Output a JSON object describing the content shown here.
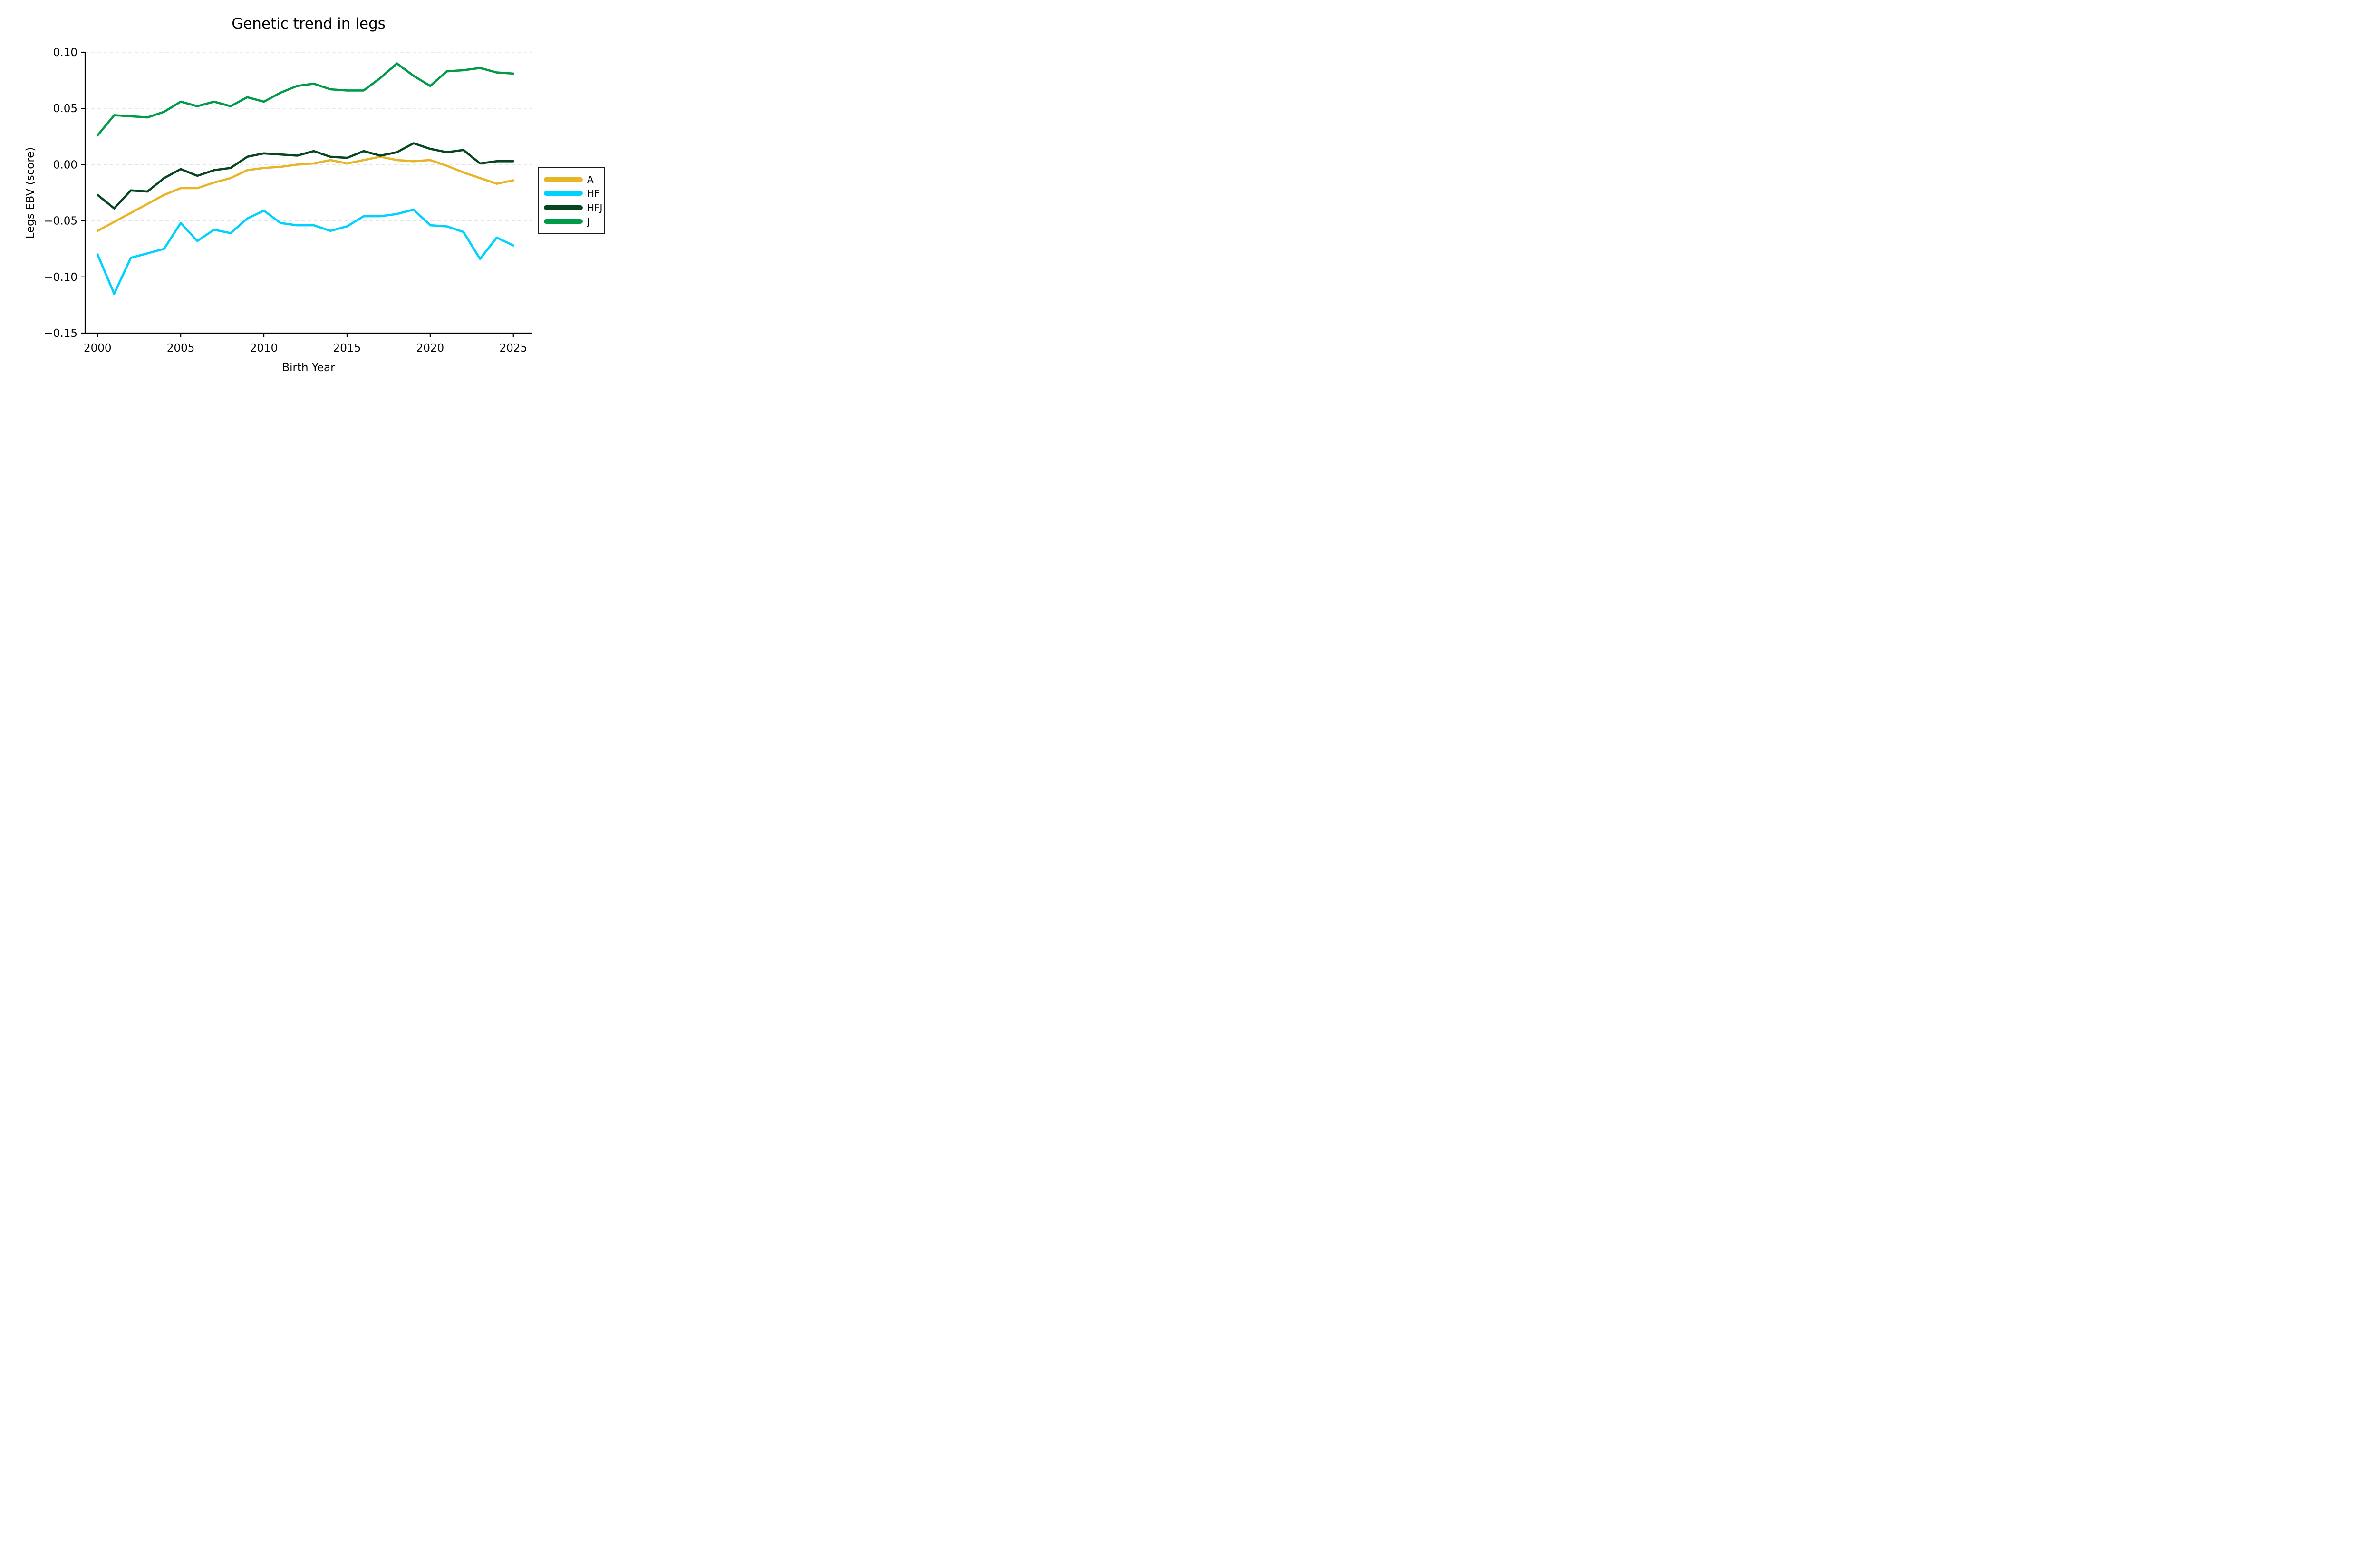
{
  "title": "Genetic trend in legs",
  "chart_data": {
    "type": "line",
    "title": "Genetic trend in legs",
    "xlabel": "Birth Year",
    "ylabel": "Legs EBV (score)",
    "x": [
      2000,
      2001,
      2002,
      2003,
      2004,
      2005,
      2006,
      2007,
      2008,
      2009,
      2010,
      2011,
      2012,
      2013,
      2014,
      2015,
      2016,
      2017,
      2018,
      2019,
      2020,
      2021,
      2022,
      2023,
      2024,
      2025
    ],
    "x_ticks": [
      2000,
      2005,
      2010,
      2015,
      2020,
      2025
    ],
    "y_ticks": [
      0.1,
      0.05,
      0.0,
      -0.05,
      -0.1,
      -0.15
    ],
    "xlim": [
      1999.25,
      2026.15
    ],
    "ylim": [
      -0.15,
      0.1
    ],
    "grid": true,
    "grid_style": "light dashed horizontal lines at y ticks",
    "legend_position": "center right",
    "series": [
      {
        "name": "A",
        "color": "#e8b527",
        "values": [
          -0.059,
          -0.051,
          -0.043,
          -0.035,
          -0.027,
          -0.021,
          -0.021,
          -0.016,
          -0.012,
          -0.005,
          -0.003,
          -0.002,
          0.0,
          0.001,
          0.004,
          0.001,
          0.004,
          0.007,
          0.004,
          0.003,
          0.004,
          -0.001,
          -0.007,
          -0.012,
          -0.017,
          -0.014
        ]
      },
      {
        "name": "HF",
        "color": "#00d2ff",
        "values": [
          -0.08,
          -0.115,
          -0.083,
          -0.079,
          -0.075,
          -0.052,
          -0.068,
          -0.058,
          -0.061,
          -0.048,
          -0.041,
          -0.052,
          -0.054,
          -0.054,
          -0.059,
          -0.055,
          -0.046,
          -0.046,
          -0.044,
          -0.04,
          -0.054,
          -0.055,
          -0.06,
          -0.084,
          -0.065,
          -0.072
        ]
      },
      {
        "name": "HFJ",
        "color": "#06451f",
        "values": [
          -0.027,
          -0.039,
          -0.023,
          -0.024,
          -0.012,
          -0.004,
          -0.01,
          -0.005,
          -0.003,
          0.007,
          0.01,
          0.009,
          0.008,
          0.012,
          0.007,
          0.006,
          0.012,
          0.008,
          0.011,
          0.019,
          0.014,
          0.011,
          0.013,
          0.001,
          0.003,
          0.003
        ]
      },
      {
        "name": "J",
        "color": "#009b48",
        "values": [
          0.026,
          0.044,
          0.043,
          0.042,
          0.047,
          0.056,
          0.052,
          0.056,
          0.052,
          0.06,
          0.056,
          0.064,
          0.07,
          0.072,
          0.067,
          0.066,
          0.066,
          0.077,
          0.09,
          0.079,
          0.07,
          0.083,
          0.084,
          0.086,
          0.082,
          0.081
        ]
      }
    ]
  }
}
